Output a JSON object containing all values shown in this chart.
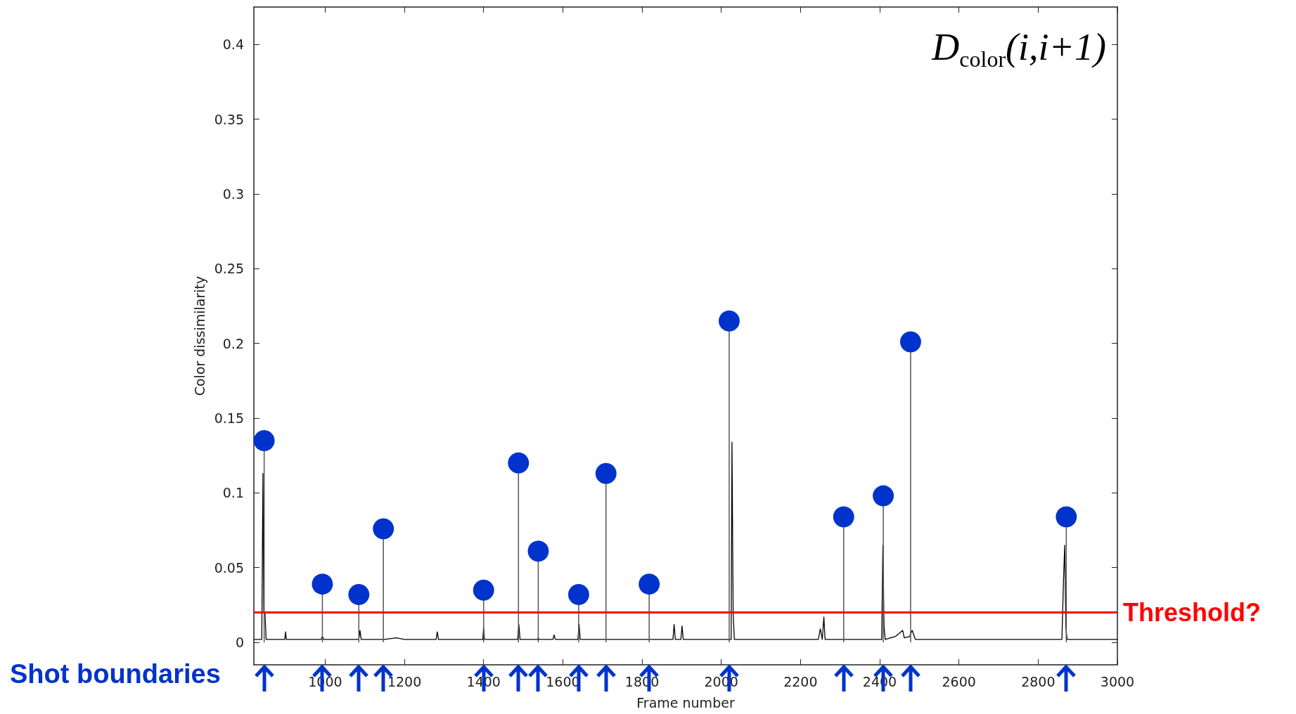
{
  "chart_data": {
    "type": "line",
    "xlabel": "Frame number",
    "ylabel": "Color dissimilarity",
    "xlim": [
      820,
      3000
    ],
    "xticks": [
      1000,
      1200,
      1400,
      1600,
      1800,
      2000,
      2200,
      2400,
      2600,
      2800,
      3000
    ],
    "ylim": [
      -0.015,
      0.425
    ],
    "yticks": [
      0,
      0.05,
      0.1,
      0.15,
      0.2,
      0.25,
      0.3,
      0.35,
      0.4
    ],
    "grid": false,
    "series": [
      {
        "color": "#000000",
        "marker": "none",
        "x": [
          820,
          840,
          843,
          845,
          848,
          851,
          855,
          898,
          900,
          902,
          990,
          993,
          996,
          1085,
          1088,
          1091,
          1145,
          1147,
          1149,
          1180,
          1200,
          1280,
          1283,
          1286,
          1398,
          1400,
          1402,
          1486,
          1489,
          1492,
          1536,
          1538,
          1540,
          1575,
          1578,
          1581,
          1638,
          1641,
          1644,
          1707,
          1709,
          1711,
          1816,
          1818,
          1820,
          1878,
          1881,
          1884,
          1898,
          1901,
          1904,
          2025,
          2027,
          2030,
          2033,
          2036,
          2245,
          2250,
          2255,
          2259,
          2262,
          2307,
          2309,
          2311,
          2405,
          2408,
          2411,
          2414,
          2440,
          2458,
          2462,
          2476,
          2478,
          2482,
          2490,
          2860,
          2864,
          2867,
          2870,
          2873,
          2876,
          3000
        ],
        "values": [
          0.002,
          0.002,
          0.113,
          0.02,
          0.02,
          0.002,
          0.002,
          0.002,
          0.007,
          0.002,
          0.002,
          0.004,
          0.002,
          0.002,
          0.008,
          0.002,
          0.002,
          0.002,
          0.002,
          0.003,
          0.002,
          0.002,
          0.007,
          0.002,
          0.002,
          0.01,
          0.002,
          0.002,
          0.012,
          0.002,
          0.002,
          0.003,
          0.002,
          0.002,
          0.005,
          0.002,
          0.002,
          0.012,
          0.002,
          0.002,
          0.002,
          0.002,
          0.002,
          0.002,
          0.002,
          0.002,
          0.012,
          0.002,
          0.002,
          0.011,
          0.002,
          0.002,
          0.134,
          0.02,
          0.002,
          0.002,
          0.002,
          0.009,
          0.002,
          0.017,
          0.002,
          0.002,
          0.002,
          0.002,
          0.002,
          0.065,
          0.01,
          0.002,
          0.004,
          0.008,
          0.003,
          0.004,
          0.006,
          0.008,
          0.002,
          0.002,
          0.042,
          0.065,
          0.01,
          0.002,
          0.002,
          0.002
        ]
      },
      {
        "type": "lollipop",
        "color": "#0033cc",
        "marker": "circle",
        "x": [
          846,
          993,
          1085,
          1147,
          1400,
          1488,
          1538,
          1640,
          1709,
          1818,
          2020,
          2309,
          2409,
          2478,
          2871
        ],
        "values": [
          0.135,
          0.039,
          0.032,
          0.076,
          0.035,
          0.12,
          0.061,
          0.032,
          0.113,
          0.039,
          0.215,
          0.084,
          0.098,
          0.201,
          0.084
        ]
      }
    ],
    "ref_lines": [
      {
        "axis": "y",
        "value": 0.02,
        "label": "Threshold?",
        "color": "#ff0000"
      }
    ],
    "annotations": [
      "D$_{color}$(i,i+1)",
      "Shot boundaries"
    ]
  }
}
